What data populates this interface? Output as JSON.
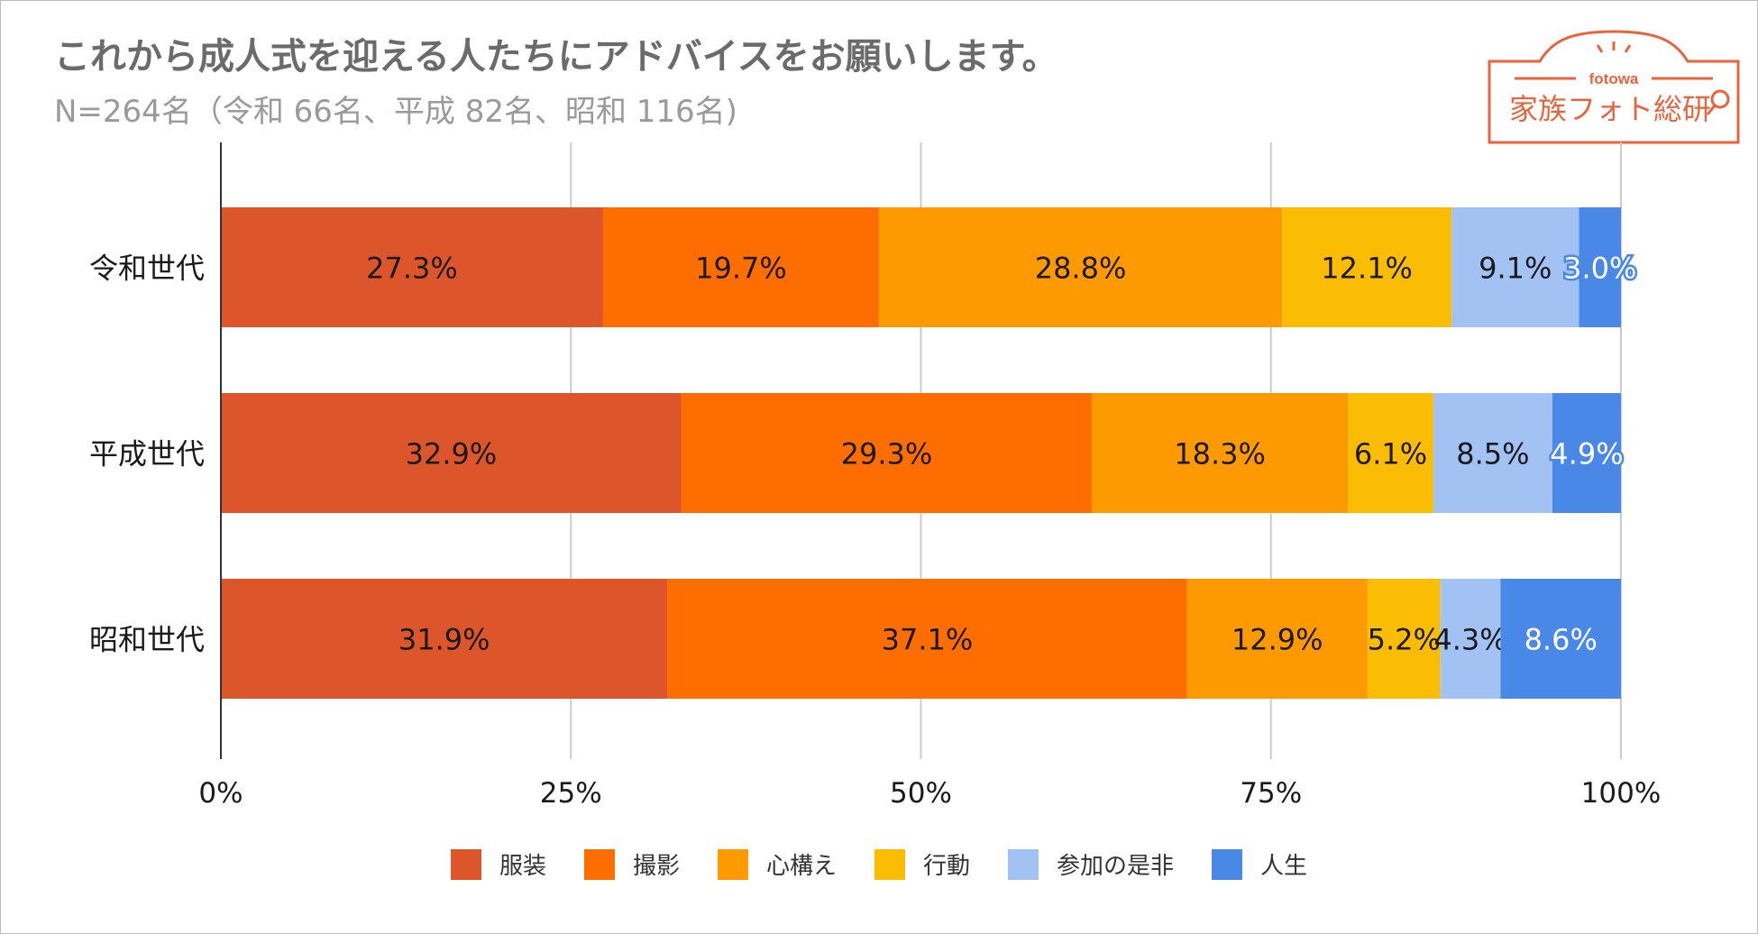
{
  "chart_data": {
    "type": "bar",
    "orientation": "horizontal",
    "stacked": true,
    "title": "これから成人式を迎える人たちにアドバイスをお願いします。",
    "subtitle": "N=264名（令和 66名、平成 82名、昭和 116名)",
    "categories": [
      "令和世代",
      "平成世代",
      "昭和世代"
    ],
    "series": [
      {
        "name": "服装",
        "color": "#dd552b",
        "values": [
          27.3,
          32.9,
          31.9
        ],
        "labels": [
          "27.3%",
          "32.9%",
          "31.9%"
        ]
      },
      {
        "name": "撮影",
        "color": "#fe6d00",
        "values": [
          19.7,
          29.3,
          37.1
        ],
        "labels": [
          "19.7%",
          "29.3%",
          "37.1%"
        ]
      },
      {
        "name": "心構え",
        "color": "#fe9a01",
        "values": [
          28.8,
          18.3,
          12.9
        ],
        "labels": [
          "28.8%",
          "18.3%",
          "12.9%"
        ]
      },
      {
        "name": "行動",
        "color": "#fbbc04",
        "values": [
          12.1,
          6.1,
          5.2
        ],
        "labels": [
          "12.1%",
          "6.1%",
          "5.2%"
        ]
      },
      {
        "name": "参加の是非",
        "color": "#a3c2f4",
        "values": [
          9.1,
          8.5,
          4.3
        ],
        "labels": [
          "9.1%",
          "8.5%",
          "4.3%"
        ]
      },
      {
        "name": "人生",
        "color": "#4a88e8",
        "values": [
          3.0,
          4.9,
          8.6
        ],
        "labels": [
          "3.0%",
          "4.9%",
          "8.6%"
        ]
      }
    ],
    "xlim": [
      0,
      100
    ],
    "xticks": [
      0,
      25,
      50,
      75,
      100
    ],
    "xtick_labels": [
      "0%",
      "25%",
      "50%",
      "75%",
      "100%"
    ],
    "grid": true,
    "legend_position": "bottom"
  },
  "logo": {
    "brand": "fotowa",
    "name": "家族フォト総研",
    "color": "#e8643c"
  }
}
